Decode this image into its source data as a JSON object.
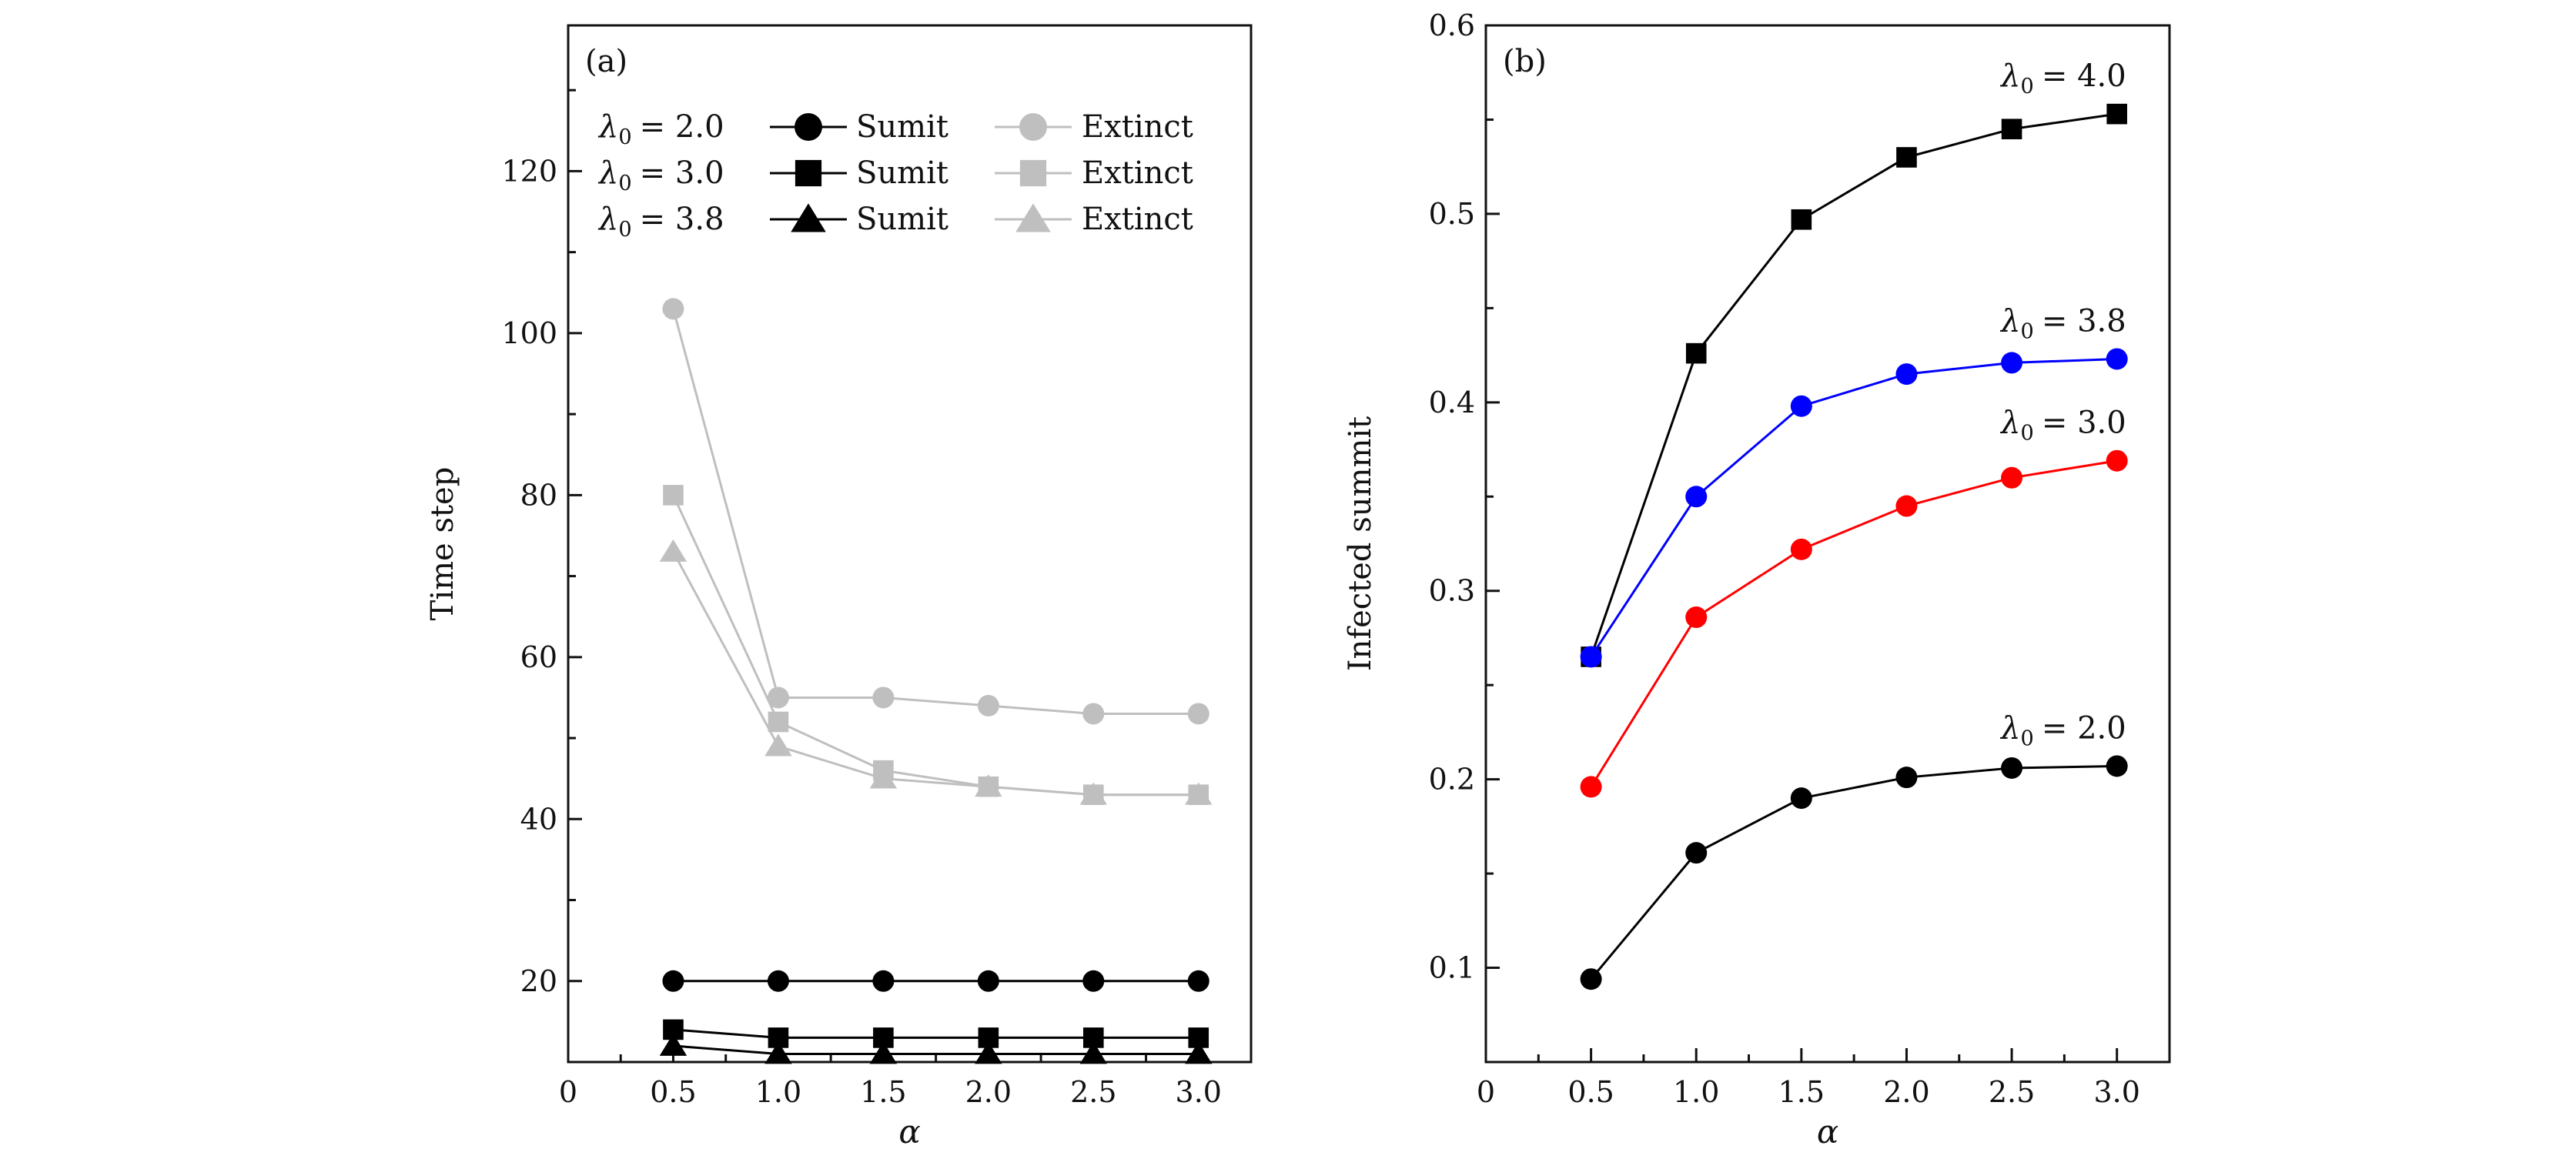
{
  "chart_data": [
    {
      "type": "line",
      "panel_label": "(a)",
      "xlabel": "α",
      "ylabel": "Time step",
      "xlim": [
        0,
        3.25
      ],
      "ylim": [
        10,
        138
      ],
      "x_ticks": [
        0,
        0.5,
        1.0,
        1.5,
        2.0,
        2.5,
        3.0
      ],
      "x_tick_labels": [
        "0",
        "0.5",
        "1.0",
        "1.5",
        "2.0",
        "2.5",
        "3.0"
      ],
      "y_ticks": [
        20,
        40,
        60,
        80,
        100,
        120
      ],
      "y_tick_labels": [
        "20",
        "40",
        "60",
        "80",
        "100",
        "120"
      ],
      "x": [
        0.5,
        1.0,
        1.5,
        2.0,
        2.5,
        3.0
      ],
      "legend_position": "top",
      "legend_rows": [
        {
          "label_base": "λ",
          "label_sub": "0",
          "label_value": "= 2.0",
          "sumit_label": "Sumit",
          "extinct_label": "Extinct",
          "marker": "circle"
        },
        {
          "label_base": "λ",
          "label_sub": "0",
          "label_value": "= 3.0",
          "sumit_label": "Sumit",
          "extinct_label": "Extinct",
          "marker": "square"
        },
        {
          "label_base": "λ",
          "label_sub": "0",
          "label_value": "= 3.8",
          "sumit_label": "Sumit",
          "extinct_label": "Extinct",
          "marker": "triangle"
        }
      ],
      "series": [
        {
          "group": "Sumit",
          "marker": "circle",
          "color": "#000000",
          "values": [
            20,
            20,
            20,
            20,
            20,
            20
          ]
        },
        {
          "group": "Sumit",
          "marker": "square",
          "color": "#000000",
          "values": [
            14,
            13,
            13,
            13,
            13,
            13
          ]
        },
        {
          "group": "Sumit",
          "marker": "triangle",
          "color": "#000000",
          "values": [
            12,
            11,
            11,
            11,
            11,
            11
          ]
        },
        {
          "group": "Extinct",
          "marker": "circle",
          "color": "#bfbfbf",
          "values": [
            103,
            55,
            55,
            54,
            53,
            53
          ]
        },
        {
          "group": "Extinct",
          "marker": "square",
          "color": "#bfbfbf",
          "values": [
            80,
            52,
            46,
            44,
            43,
            43
          ]
        },
        {
          "group": "Extinct",
          "marker": "triangle",
          "color": "#bfbfbf",
          "values": [
            73,
            49,
            45,
            44,
            43,
            43
          ]
        }
      ]
    },
    {
      "type": "line",
      "panel_label": "(b)",
      "xlabel": "α",
      "ylabel": "Infected summit",
      "xlim": [
        0,
        3.25
      ],
      "ylim": [
        0.05,
        0.6
      ],
      "x_ticks": [
        0,
        0.5,
        1.0,
        1.5,
        2.0,
        2.5,
        3.0
      ],
      "x_tick_labels": [
        "0",
        "0.5",
        "1.0",
        "1.5",
        "2.0",
        "2.5",
        "3.0"
      ],
      "y_ticks": [
        0.1,
        0.2,
        0.3,
        0.4,
        0.5,
        0.6
      ],
      "y_tick_labels": [
        "0.1",
        "0.2",
        "0.3",
        "0.4",
        "0.5",
        "0.6"
      ],
      "x": [
        0.5,
        1.0,
        1.5,
        2.0,
        2.5,
        3.0
      ],
      "series": [
        {
          "label_base": "λ",
          "label_sub": "0",
          "label_value": "= 4.0",
          "marker": "square",
          "color": "#000000",
          "values": [
            0.265,
            0.426,
            0.497,
            0.53,
            0.545,
            0.553
          ]
        },
        {
          "label_base": "λ",
          "label_sub": "0",
          "label_value": "= 3.8",
          "marker": "circle",
          "color": "#0000ff",
          "values": [
            0.265,
            0.35,
            0.398,
            0.415,
            0.421,
            0.423
          ]
        },
        {
          "label_base": "λ",
          "label_sub": "0",
          "label_value": "= 3.0",
          "marker": "circle",
          "color": "#ff0000",
          "values": [
            0.196,
            0.286,
            0.322,
            0.345,
            0.36,
            0.369
          ]
        },
        {
          "label_base": "λ",
          "label_sub": "0",
          "label_value": "= 2.0",
          "marker": "circle",
          "color": "#000000",
          "values": [
            0.094,
            0.161,
            0.19,
            0.201,
            0.206,
            0.207
          ]
        }
      ]
    }
  ]
}
